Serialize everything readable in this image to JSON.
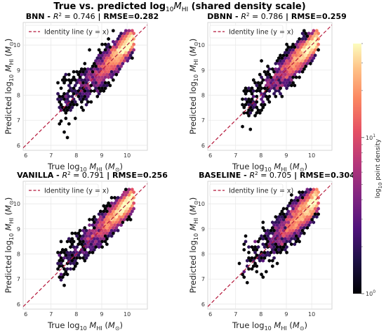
{
  "figure": {
    "title_prefix": "True vs. predicted log",
    "title_sub": "10",
    "title_var": "M",
    "title_var_sub": "HI",
    "title_suffix": " (shared density scale)"
  },
  "chart_data": [
    {
      "type": "scatter",
      "subtype": "hexbin",
      "model": "BNN",
      "title_text": "BNN - ",
      "r2": "0.746",
      "rmse": "0.282",
      "xlabel": "True log10 M_HI (M_sun)",
      "ylabel": "Predicted log10 M_HI (M_sun)",
      "xlim": [
        5.9,
        10.8
      ],
      "ylim": [
        5.8,
        10.9
      ],
      "xticks": [
        6,
        7,
        8,
        9,
        10
      ],
      "yticks": [
        6,
        7,
        8,
        9,
        10
      ],
      "legend": "Identity line (y = x)",
      "legend_position": "upper-left",
      "identity_line": true,
      "grid": true,
      "spread": 0.42,
      "seed": 11
    },
    {
      "type": "scatter",
      "subtype": "hexbin",
      "model": "DBNN",
      "title_text": "DBNN - ",
      "r2": "0.786",
      "rmse": "0.259",
      "xlabel": "True log10 M_HI (M_sun)",
      "ylabel": "Predicted log10 M_HI (M_sun)",
      "xlim": [
        5.9,
        10.8
      ],
      "ylim": [
        5.8,
        10.9
      ],
      "xticks": [
        6,
        7,
        8,
        9,
        10
      ],
      "yticks": [
        6,
        7,
        8,
        9,
        10
      ],
      "legend": "Identity line (y = x)",
      "legend_position": "upper-left",
      "identity_line": true,
      "grid": true,
      "spread": 0.38,
      "seed": 23
    },
    {
      "type": "scatter",
      "subtype": "hexbin",
      "model": "VANILLA",
      "title_text": "VANILLA - ",
      "r2": "0.791",
      "rmse": "0.256",
      "xlabel": "True log10 M_HI (M_sun)",
      "ylabel": "Predicted log10 M_HI (M_sun)",
      "xlim": [
        5.9,
        10.8
      ],
      "ylim": [
        5.8,
        10.9
      ],
      "xticks": [
        6,
        7,
        8,
        9,
        10
      ],
      "yticks": [
        6,
        7,
        8,
        9,
        10
      ],
      "legend": "Identity line (y = x)",
      "legend_position": "upper-left",
      "identity_line": true,
      "grid": true,
      "spread": 0.37,
      "seed": 37
    },
    {
      "type": "scatter",
      "subtype": "hexbin",
      "model": "BASELINE",
      "title_text": "BASELINE - ",
      "r2": "0.705",
      "rmse": "0.304",
      "xlabel": "True log10 M_HI (M_sun)",
      "ylabel": "Predicted log10 M_HI (M_sun)",
      "xlim": [
        5.9,
        10.8
      ],
      "ylim": [
        5.8,
        10.9
      ],
      "xticks": [
        6,
        7,
        8,
        9,
        10
      ],
      "yticks": [
        6,
        7,
        8,
        9,
        10
      ],
      "legend": "Identity line (y = x)",
      "legend_position": "upper-left",
      "identity_line": true,
      "grid": true,
      "spread": 0.45,
      "seed": 53
    }
  ],
  "colorbar": {
    "label_prefix": "log",
    "label_sub": "10",
    "label_suffix": " point density",
    "scale": "log",
    "range": [
      1,
      40
    ],
    "ticks": [
      {
        "base": "10",
        "exp": "0",
        "value": 1
      },
      {
        "base": "10",
        "exp": "1",
        "value": 10
      }
    ],
    "colormap": "magma"
  },
  "colors": {
    "identity_line": "#b5173a",
    "grid": "#e6e6e6",
    "spine": "#cccccc"
  }
}
